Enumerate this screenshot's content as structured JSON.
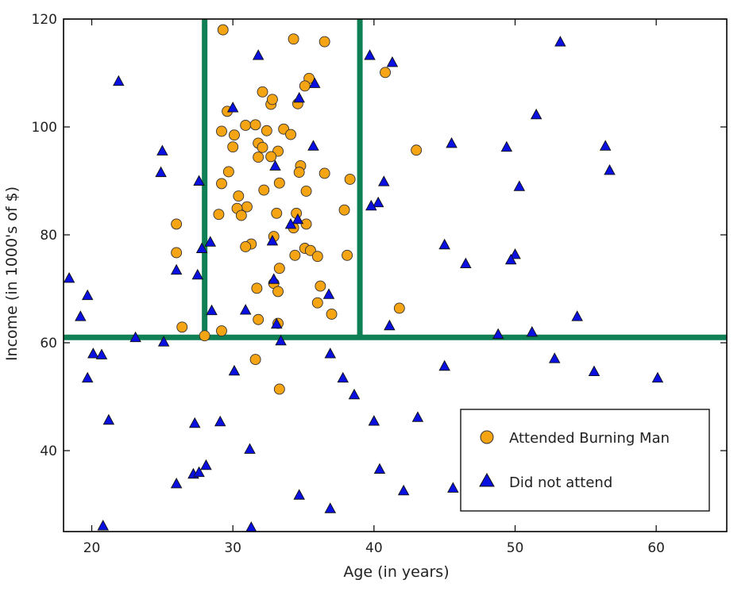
{
  "chart_data": {
    "type": "scatter",
    "title": "",
    "xlabel": "Age (in years)",
    "ylabel": "Income (in 1000's of $)",
    "xlim": [
      18,
      65
    ],
    "ylim": [
      25,
      120
    ],
    "xticks": [
      20,
      30,
      40,
      50,
      60
    ],
    "yticks": [
      40,
      60,
      80,
      100,
      120
    ],
    "grid": false,
    "legend_position": "bottom-right",
    "decision_lines": {
      "color": "#0f7f55",
      "vertical_x": [
        28,
        39
      ],
      "horizontal_y": [
        61
      ],
      "vertical_span_y_min": 61
    },
    "series": [
      {
        "name": "Attended Burning Man",
        "marker": "circle",
        "color": "#f5a414",
        "points": [
          [
            29.3,
            118
          ],
          [
            34.3,
            116.3
          ],
          [
            36.5,
            115.8
          ],
          [
            32.1,
            106.5
          ],
          [
            32.7,
            104.2
          ],
          [
            32.8,
            105.1
          ],
          [
            34.6,
            104.3
          ],
          [
            35.4,
            109
          ],
          [
            35.1,
            107.6
          ],
          [
            40.8,
            110.1
          ],
          [
            29.6,
            102.9
          ],
          [
            30.9,
            100.3
          ],
          [
            31.6,
            100.4
          ],
          [
            32.4,
            99.3
          ],
          [
            33.6,
            99.6
          ],
          [
            34.1,
            98.6
          ],
          [
            29.2,
            99.2
          ],
          [
            30.1,
            98.5
          ],
          [
            31.8,
            97
          ],
          [
            32.1,
            96.2
          ],
          [
            30,
            96.3
          ],
          [
            33.2,
            95.5
          ],
          [
            31.8,
            94.4
          ],
          [
            32.7,
            94.5
          ],
          [
            34.8,
            92.8
          ],
          [
            36.5,
            91.4
          ],
          [
            29.7,
            91.7
          ],
          [
            34.7,
            91.6
          ],
          [
            38.3,
            90.3
          ],
          [
            29.2,
            89.5
          ],
          [
            33.3,
            89.6
          ],
          [
            32.2,
            88.3
          ],
          [
            35.2,
            88.1
          ],
          [
            30.4,
            87.2
          ],
          [
            31,
            85.2
          ],
          [
            30.3,
            84.9
          ],
          [
            30.6,
            83.6
          ],
          [
            29,
            83.8
          ],
          [
            33.1,
            84
          ],
          [
            34.5,
            84
          ],
          [
            37.9,
            84.6
          ],
          [
            26,
            82
          ],
          [
            35.2,
            82
          ],
          [
            34.3,
            81.3
          ],
          [
            32.9,
            79.7
          ],
          [
            31.3,
            78.3
          ],
          [
            30.9,
            77.8
          ],
          [
            35.1,
            77.5
          ],
          [
            35.5,
            77.1
          ],
          [
            26,
            76.7
          ],
          [
            34.4,
            76.2
          ],
          [
            36,
            76
          ],
          [
            38.1,
            76.2
          ],
          [
            33.3,
            73.8
          ],
          [
            32.9,
            71
          ],
          [
            31.7,
            70.1
          ],
          [
            33.2,
            69.5
          ],
          [
            36.2,
            70.5
          ],
          [
            36,
            67.4
          ],
          [
            37,
            65.3
          ],
          [
            31.8,
            64.3
          ],
          [
            33.2,
            63.6
          ],
          [
            26.4,
            62.9
          ],
          [
            29.2,
            62.2
          ],
          [
            41.8,
            66.4
          ],
          [
            43,
            95.7
          ],
          [
            28,
            61.3
          ],
          [
            31.6,
            56.9
          ],
          [
            33.3,
            51.4
          ]
        ]
      },
      {
        "name": "Did not attend",
        "marker": "triangle",
        "color": "#0a10e0",
        "points": [
          [
            21.9,
            108.5
          ],
          [
            30,
            103.6
          ],
          [
            31.8,
            113.3
          ],
          [
            35.8,
            108.1
          ],
          [
            34.7,
            105.4
          ],
          [
            39.7,
            113.3
          ],
          [
            41.3,
            112
          ],
          [
            53.2,
            115.8
          ],
          [
            51.5,
            102.3
          ],
          [
            45.5,
            97
          ],
          [
            49.4,
            96.3
          ],
          [
            56.4,
            96.5
          ],
          [
            56.7,
            92
          ],
          [
            50.3,
            89
          ],
          [
            40.7,
            89.9
          ],
          [
            40.3,
            86
          ],
          [
            39.8,
            85.4
          ],
          [
            35.7,
            96.5
          ],
          [
            33,
            92.8
          ],
          [
            34.6,
            82.9
          ],
          [
            34.1,
            82
          ],
          [
            32.8,
            78.9
          ],
          [
            45,
            78.2
          ],
          [
            46.5,
            74.7
          ],
          [
            50,
            76.4
          ],
          [
            49.7,
            75.4
          ],
          [
            27.6,
            90
          ],
          [
            28.4,
            78.7
          ],
          [
            27.8,
            77.5
          ],
          [
            26,
            73.5
          ],
          [
            27.5,
            72.6
          ],
          [
            25,
            95.6
          ],
          [
            24.9,
            91.6
          ],
          [
            18.4,
            72
          ],
          [
            19.7,
            68.8
          ],
          [
            19.2,
            64.9
          ],
          [
            20.1,
            58
          ],
          [
            20.7,
            57.8
          ],
          [
            23.1,
            61
          ],
          [
            25.1,
            60.2
          ],
          [
            28.5,
            66
          ],
          [
            30.9,
            66.1
          ],
          [
            32.9,
            71.8
          ],
          [
            33.1,
            63.5
          ],
          [
            36.8,
            69
          ],
          [
            41.1,
            63.2
          ],
          [
            51.2,
            62
          ],
          [
            48.8,
            61.6
          ],
          [
            54.4,
            64.9
          ],
          [
            33.4,
            60.4
          ],
          [
            19.7,
            53.5
          ],
          [
            21.2,
            45.7
          ],
          [
            27.3,
            45.1
          ],
          [
            29.1,
            45.4
          ],
          [
            30.1,
            54.8
          ],
          [
            36.9,
            58
          ],
          [
            37.8,
            53.5
          ],
          [
            38.6,
            50.4
          ],
          [
            40,
            45.5
          ],
          [
            43.1,
            46.2
          ],
          [
            45,
            55.7
          ],
          [
            52.8,
            57.1
          ],
          [
            55.6,
            54.7
          ],
          [
            60.1,
            53.5
          ],
          [
            31.2,
            40.3
          ],
          [
            27.2,
            35.7
          ],
          [
            27.6,
            36
          ],
          [
            28.1,
            37.3
          ],
          [
            26,
            33.9
          ],
          [
            40.4,
            36.6
          ],
          [
            42.1,
            32.6
          ],
          [
            45.6,
            33.1
          ],
          [
            34.7,
            31.8
          ],
          [
            36.9,
            29.3
          ],
          [
            20.8,
            26.1
          ],
          [
            31.3,
            25.8
          ]
        ]
      }
    ]
  }
}
